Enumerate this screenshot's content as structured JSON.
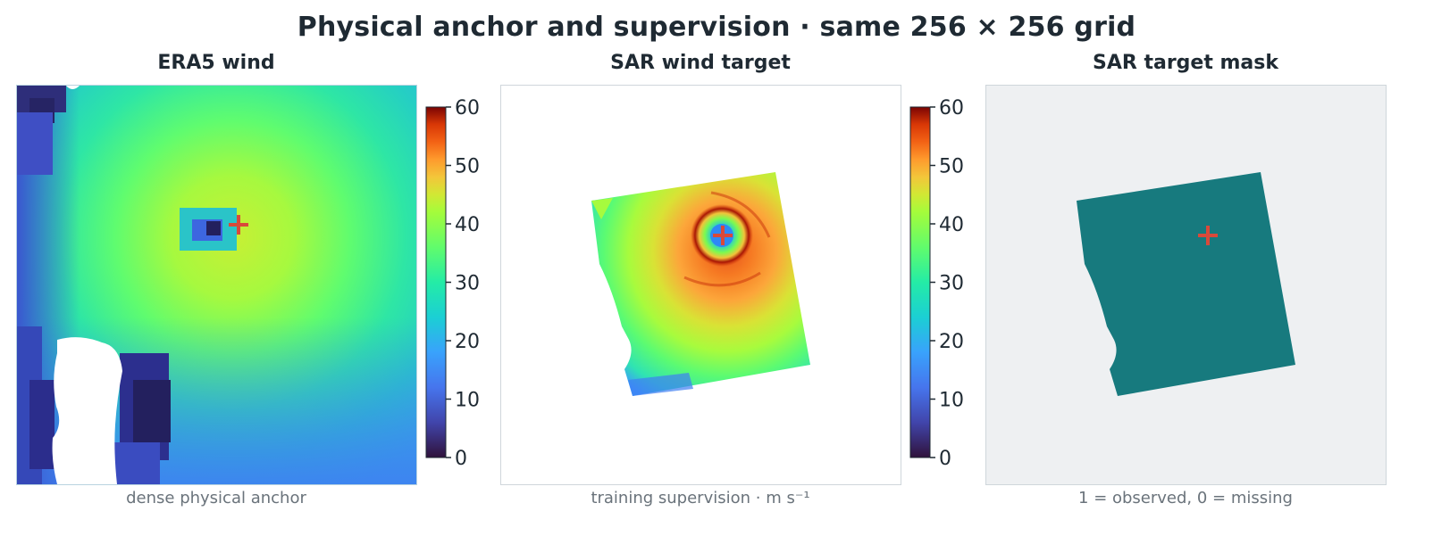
{
  "title": "Physical anchor and supervision · same 256 × 256 grid",
  "panels": [
    {
      "title": "ERA5 wind",
      "caption": "dense physical anchor"
    },
    {
      "title": "SAR wind target",
      "caption": "training supervision · m s⁻¹"
    },
    {
      "title": "SAR target mask",
      "caption": "1 = observed, 0 = missing"
    }
  ],
  "colorbar": {
    "ticks": [
      "60",
      "50",
      "40",
      "30",
      "20",
      "10",
      "0"
    ],
    "min": 0,
    "max": 60,
    "colormap": "turbo"
  },
  "colors": {
    "mask_fill": "#177a7e",
    "mask_background": "#eef0f2",
    "center_marker": "#d9493a"
  }
}
